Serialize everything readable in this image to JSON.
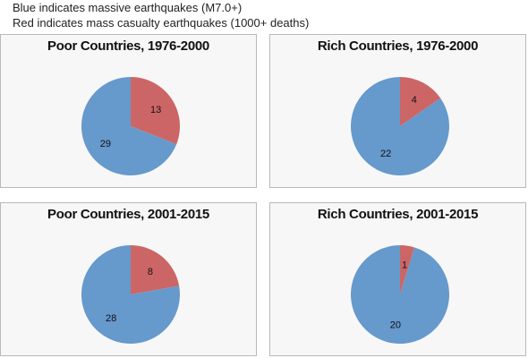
{
  "legend": {
    "line1": "Blue indicates massive earthquakes (M7.0+)",
    "line2": "Red indicates mass casualty earthquakes (1000+ deaths)"
  },
  "colors": {
    "blue": "#6699cc",
    "red": "#cc6666"
  },
  "chart_data": [
    {
      "type": "pie",
      "title": "Poor Countries, 1976-2000",
      "slices": [
        {
          "label": "13",
          "value": 13,
          "color": "#cc6666"
        },
        {
          "label": "29",
          "value": 29,
          "color": "#6699cc"
        }
      ]
    },
    {
      "type": "pie",
      "title": "Rich Countries, 1976-2000",
      "slices": [
        {
          "label": "4",
          "value": 4,
          "color": "#cc6666"
        },
        {
          "label": "22",
          "value": 22,
          "color": "#6699cc"
        }
      ]
    },
    {
      "type": "pie",
      "title": "Poor Countries, 2001-2015",
      "slices": [
        {
          "label": "8",
          "value": 8,
          "color": "#cc6666"
        },
        {
          "label": "28",
          "value": 28,
          "color": "#6699cc"
        }
      ]
    },
    {
      "type": "pie",
      "title": "Rich Countries, 2001-2015",
      "slices": [
        {
          "label": "1",
          "value": 1,
          "color": "#cc6666"
        },
        {
          "label": "20",
          "value": 20,
          "color": "#6699cc"
        }
      ]
    }
  ]
}
